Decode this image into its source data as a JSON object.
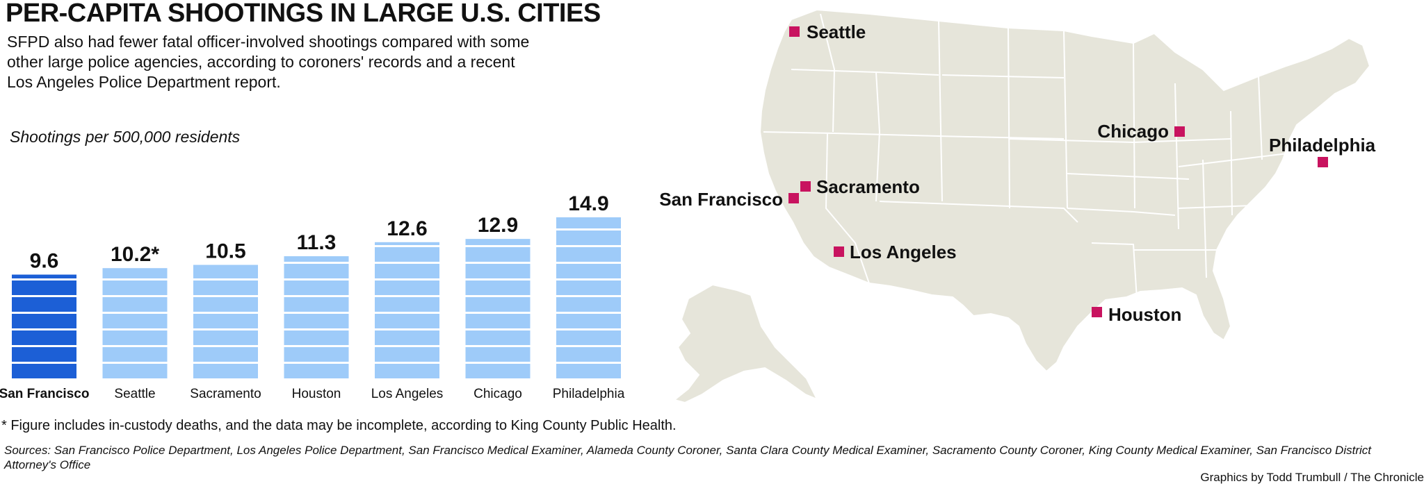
{
  "title": "PER-CAPITA SHOOTINGS IN LARGE U.S. CITIES",
  "subtitle": "SFPD also had fewer fatal officer-involved shootings compared with some other large police agencies, according to coroners' records and a recent Los Angeles Police Department report.",
  "chart_data": {
    "type": "bar",
    "ylabel": "Shootings per 500,000 residents",
    "categories": [
      "San Francisco",
      "Seattle",
      "Sacramento",
      "Houston",
      "Los Angeles",
      "Chicago",
      "Philadelphia"
    ],
    "values": [
      9.6,
      10.2,
      10.5,
      11.3,
      12.6,
      12.9,
      14.9
    ],
    "value_labels": [
      "9.6",
      "10.2*",
      "10.5",
      "11.3",
      "12.6",
      "12.9",
      "14.9"
    ],
    "highlight": "San Francisco",
    "colors": {
      "highlight": "#1c5fd6",
      "default": "#9ecbf9"
    },
    "ylim": [
      0,
      14.9
    ]
  },
  "map": {
    "marker_color": "#c8135f",
    "land_color": "#e6e5da",
    "cities": [
      "Seattle",
      "Chicago",
      "Philadelphia",
      "Sacramento",
      "San Francisco",
      "Los Angeles",
      "Houston"
    ]
  },
  "footnote": "* Figure includes in-custody deaths, and the data may be incomplete, according to King County Public Health.",
  "sources": "Sources: San Francisco Police Department, Los Angeles Police Department, San Francisco Medical Examiner, Alameda County Coroner, Santa Clara County Medical Examiner, Sacramento County Coroner, King County Medical Examiner, San Francisco District Attorney's Office",
  "credit": "Graphics by Todd Trumbull / The Chronicle"
}
